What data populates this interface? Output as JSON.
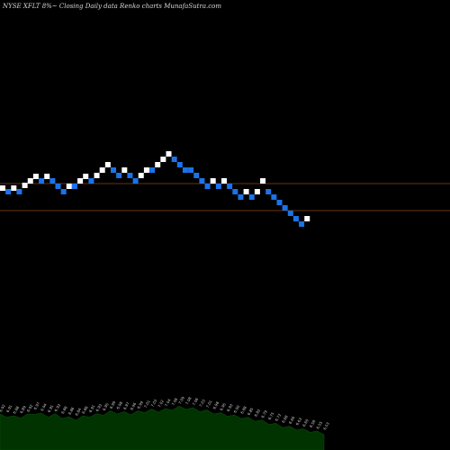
{
  "header": {
    "title": "NYSE XFLT 8%~  Closing Daily data  Renko  charts MunafaSutra.com"
  },
  "colors": {
    "background": "#000000",
    "brick_up": "#ffffff",
    "brick_down": "#1a73e8",
    "ref_line": "#8b4513",
    "volume_fill": "#003300",
    "volume_line": "#0c4a0c",
    "label": "#cfcfcf"
  },
  "chart_data": {
    "type": "renko",
    "bricks": [
      {
        "dir": "up",
        "level": 209
      },
      {
        "dir": "down",
        "level": 213
      },
      {
        "dir": "up",
        "level": 209
      },
      {
        "dir": "down",
        "level": 213
      },
      {
        "dir": "up",
        "level": 206
      },
      {
        "dir": "up",
        "level": 201
      },
      {
        "dir": "up",
        "level": 196
      },
      {
        "dir": "down",
        "level": 201
      },
      {
        "dir": "up",
        "level": 196
      },
      {
        "dir": "down",
        "level": 201
      },
      {
        "dir": "down",
        "level": 207
      },
      {
        "dir": "down",
        "level": 213
      },
      {
        "dir": "up",
        "level": 207
      },
      {
        "dir": "down",
        "level": 207
      },
      {
        "dir": "up",
        "level": 201
      },
      {
        "dir": "up",
        "level": 196
      },
      {
        "dir": "down",
        "level": 201
      },
      {
        "dir": "up",
        "level": 195
      },
      {
        "dir": "up",
        "level": 189
      },
      {
        "dir": "up",
        "level": 183
      },
      {
        "dir": "down",
        "level": 189
      },
      {
        "dir": "down",
        "level": 195
      },
      {
        "dir": "up",
        "level": 189
      },
      {
        "dir": "down",
        "level": 195
      },
      {
        "dir": "down",
        "level": 201
      },
      {
        "dir": "up",
        "level": 195
      },
      {
        "dir": "up",
        "level": 189
      },
      {
        "dir": "down",
        "level": 189
      },
      {
        "dir": "up",
        "level": 183
      },
      {
        "dir": "up",
        "level": 177
      },
      {
        "dir": "up",
        "level": 171
      },
      {
        "dir": "down",
        "level": 177
      },
      {
        "dir": "down",
        "level": 183
      },
      {
        "dir": "down",
        "level": 189
      },
      {
        "dir": "down",
        "level": 189
      },
      {
        "dir": "down",
        "level": 195
      },
      {
        "dir": "down",
        "level": 201
      },
      {
        "dir": "down",
        "level": 207
      },
      {
        "dir": "up",
        "level": 201
      },
      {
        "dir": "down",
        "level": 207
      },
      {
        "dir": "up",
        "level": 201
      },
      {
        "dir": "down",
        "level": 207
      },
      {
        "dir": "down",
        "level": 213
      },
      {
        "dir": "down",
        "level": 219
      },
      {
        "dir": "up",
        "level": 213
      },
      {
        "dir": "down",
        "level": 219
      },
      {
        "dir": "up",
        "level": 213
      },
      {
        "dir": "up",
        "level": 201
      },
      {
        "dir": "down",
        "level": 213
      },
      {
        "dir": "down",
        "level": 219
      },
      {
        "dir": "down",
        "level": 225
      },
      {
        "dir": "down",
        "level": 231
      },
      {
        "dir": "down",
        "level": 237
      },
      {
        "dir": "down",
        "level": 243
      },
      {
        "dir": "down",
        "level": 249
      },
      {
        "dir": "up",
        "level": 243
      }
    ],
    "reference_lines": [
      204,
      234
    ],
    "volume_labels": [
      "6.92",
      "6.91",
      "6.88",
      "6.89",
      "6.92",
      "6.97",
      "6.94",
      "6.91",
      "6.93",
      "6.88",
      "6.86",
      "6.84",
      "6.88",
      "6.91",
      "6.93",
      "6.95",
      "6.99",
      "6.98",
      "6.97",
      "6.96",
      "6.99",
      "7.01",
      "7.03",
      "7.02",
      "7.04",
      "7.06",
      "7.09",
      "7.08",
      "7.06",
      "7.03",
      "7.01",
      "6.98",
      "6.95",
      "6.93",
      "6.90",
      "6.88",
      "6.85",
      "6.82",
      "6.79",
      "6.75",
      "6.72",
      "6.68",
      "6.66",
      "6.63",
      "6.60",
      "6.58",
      "6.55",
      "6.53"
    ]
  }
}
